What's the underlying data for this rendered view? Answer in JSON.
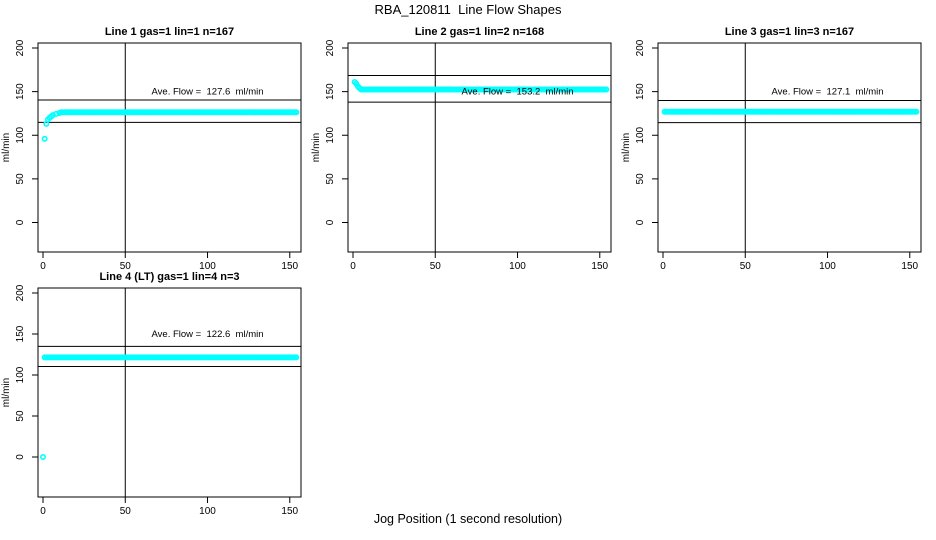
{
  "figure": {
    "title": "RBA_120811  Line Flow Shapes",
    "xlabel": "Jog Position (1 second resolution)",
    "background_color": "#FFFFFF",
    "text_color": "#000000"
  },
  "chart_data": {
    "type": "scatter",
    "point_color": "#00FFFF",
    "line_color": "#000000",
    "ylabel": "ml/min",
    "xlabel": "Jog Position (1 second resolution)",
    "x_ticks": [
      0,
      50,
      100,
      150
    ],
    "y_ticks": [
      0,
      50,
      100,
      150,
      200
    ],
    "xlim": [
      0,
      155
    ],
    "ylim": [
      -30,
      205
    ],
    "grid": false,
    "legend": "none",
    "subplots": [
      {
        "title": "Line 1 gas=1 lin=1 n=167",
        "annotation": "Ave. Flow =  127.6  ml/min",
        "ave_flow_ml_min": 127.6,
        "n": 167,
        "gas": 1,
        "lin": 1,
        "row": 0,
        "col": 0,
        "flat_value": 126.3,
        "flat_x_start": 11,
        "flat_x_end": 154,
        "transient_points": [
          [
            1,
            96
          ],
          [
            2,
            113
          ],
          [
            3,
            118
          ],
          [
            4,
            120
          ],
          [
            5,
            121.5
          ],
          [
            6,
            123
          ],
          [
            8,
            124.5
          ],
          [
            10,
            125.5
          ]
        ],
        "ref_lines": [
          140.4,
          114.8
        ],
        "vline_x": 50
      },
      {
        "title": "Line 2 gas=1 lin=2 n=168",
        "annotation": "Ave. Flow =  153.2  ml/min",
        "ave_flow_ml_min": 153.2,
        "n": 168,
        "gas": 1,
        "lin": 2,
        "row": 0,
        "col": 1,
        "flat_value": 152.5,
        "flat_x_start": 5,
        "flat_x_end": 154,
        "transient_points": [
          [
            1,
            161
          ],
          [
            2,
            159
          ],
          [
            3,
            156
          ],
          [
            4,
            154
          ]
        ],
        "ref_lines": [
          168.5,
          137.9
        ],
        "vline_x": 50
      },
      {
        "title": "Line 3 gas=1 lin=3 n=167",
        "annotation": "Ave. Flow =  127.1  ml/min",
        "ave_flow_ml_min": 127.1,
        "n": 167,
        "gas": 1,
        "lin": 3,
        "row": 0,
        "col": 2,
        "flat_value": 127,
        "flat_x_start": 1,
        "flat_x_end": 154,
        "transient_points": [],
        "ref_lines": [
          139.8,
          114.4
        ],
        "vline_x": 50
      },
      {
        "title": "Line 4 (LT) gas=1 lin=4 n=3",
        "annotation": "Ave. Flow =  122.6  ml/min",
        "ave_flow_ml_min": 122.6,
        "n": 3,
        "gas": 1,
        "lin": 4,
        "row": 1,
        "col": 0,
        "flat_value": 121.5,
        "flat_x_start": 1,
        "flat_x_end": 154,
        "transient_points": [
          [
            0,
            0
          ]
        ],
        "ref_lines": [
          134.9,
          110.3
        ],
        "vline_x": 50
      }
    ]
  }
}
